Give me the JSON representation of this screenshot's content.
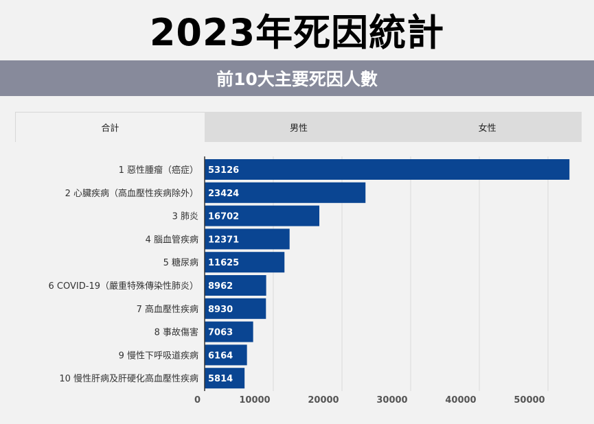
{
  "title": "2023年死因統計",
  "subtitle": "前10大主要死因人數",
  "tabs": [
    {
      "label": "合計",
      "active": true
    },
    {
      "label": "男性",
      "active": false
    },
    {
      "label": "女性",
      "active": false
    }
  ],
  "colors": {
    "bar": "#0a4592",
    "subtitle_bg": "#878a9b",
    "grid": "#d9d9d9"
  },
  "chart_data": {
    "type": "bar",
    "orientation": "horizontal",
    "categories": [
      "1 惡性腫瘤（癌症）",
      "2 心臟疾病（高血壓性疾病除外）",
      "3 肺炎",
      "4 腦血管疾病",
      "5 糖尿病",
      "6 COVID-19（嚴重特殊傳染性肺炎）",
      "7 高血壓性疾病",
      "8 事故傷害",
      "9 慢性下呼吸道疾病",
      "10 慢性肝病及肝硬化高血壓性疾病"
    ],
    "values": [
      53126,
      23424,
      16702,
      12371,
      11625,
      8962,
      8930,
      7063,
      6164,
      5814
    ],
    "xlim": [
      0,
      55000
    ],
    "xticks": [
      0,
      10000,
      20000,
      30000,
      40000,
      50000
    ],
    "grid": true
  }
}
